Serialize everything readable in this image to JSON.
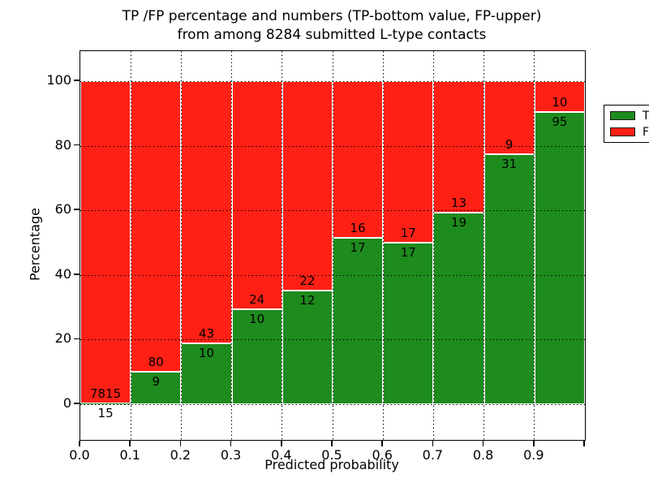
{
  "title": {
    "line1": "TP /FP percentage and numbers (TP-bottom value, FP-upper)",
    "line2": "from among 8284 submitted L-type contacts"
  },
  "axes": {
    "xlabel": "Predicted probability",
    "ylabel": "Percentage"
  },
  "chart_data": {
    "type": "bar",
    "stacked": true,
    "normalized": "percent per bin",
    "title": "TP /FP percentage and numbers (TP-bottom value, FP-upper) from among 8284 submitted L-type contacts",
    "xlabel": "Predicted probability",
    "ylabel": "Percentage",
    "total_contacts": 8284,
    "bins": [
      "0.0-0.1",
      "0.1-0.2",
      "0.2-0.3",
      "0.3-0.4",
      "0.4-0.5",
      "0.5-0.6",
      "0.6-0.7",
      "0.7-0.8",
      "0.8-0.9",
      "0.9-1.0"
    ],
    "xticks": [
      "0.0",
      "0.1",
      "0.2",
      "0.3",
      "0.4",
      "0.5",
      "0.6",
      "0.7",
      "0.8",
      "0.9"
    ],
    "yticks": [
      0,
      20,
      40,
      60,
      80,
      100
    ],
    "xlim": [
      0.0,
      1.0
    ],
    "ylim": [
      -11,
      109
    ],
    "grid": {
      "style": "dotted",
      "axis": "both",
      "drawn_over_bars": true
    },
    "legend_position": "upper-right",
    "series": [
      {
        "name": "TP",
        "color": "#1e8b1e",
        "label_position": "bottom (inside green, below boundary)",
        "counts": [
          15,
          9,
          10,
          10,
          12,
          17,
          17,
          19,
          31,
          95
        ],
        "percent": [
          0.19,
          10.11,
          18.87,
          29.41,
          35.29,
          51.52,
          50.0,
          59.38,
          77.5,
          90.48
        ]
      },
      {
        "name": "FP",
        "color": "#ff2015",
        "label_position": "upper (inside red, above boundary)",
        "counts": [
          7815,
          80,
          43,
          24,
          22,
          16,
          17,
          13,
          9,
          10
        ],
        "percent": [
          99.81,
          89.89,
          81.13,
          70.59,
          64.71,
          48.48,
          50.0,
          40.63,
          22.5,
          9.52
        ]
      }
    ]
  }
}
